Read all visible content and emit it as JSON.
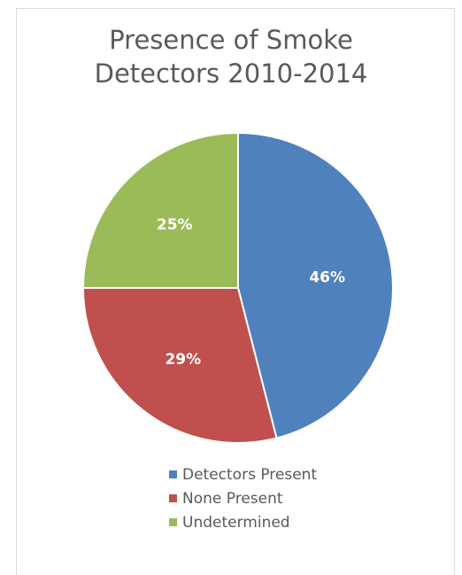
{
  "chart_data": {
    "type": "pie",
    "title": "Presence of Smoke\nDetectors 2010-2014",
    "categories": [
      "Detectors Present",
      "None Present",
      "Undetermined"
    ],
    "values": [
      46,
      29,
      25
    ],
    "data_labels": [
      "46%",
      "29%",
      "25%"
    ],
    "colors": [
      "#4f81bd",
      "#c0504d",
      "#9bbb59"
    ],
    "start_angle_deg": 0,
    "direction": "clockwise",
    "legend_position": "bottom"
  }
}
